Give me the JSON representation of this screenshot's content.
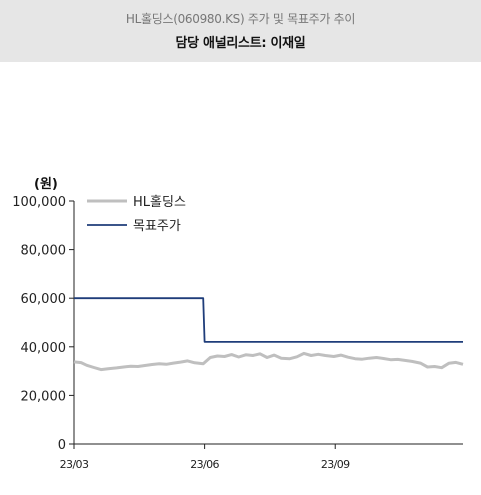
{
  "header": {
    "title": "HL홀딩스(060980.KS) 주가 및 목표주가 추이",
    "subtitle": "담당 애널리스트: 이재일"
  },
  "chart_data": {
    "type": "line",
    "unit_label": "(원)",
    "ylim": [
      0,
      100000
    ],
    "y_ticks": [
      "100,000",
      "80,000",
      "60,000",
      "40,000",
      "20,000",
      "0"
    ],
    "y_tick_values": [
      100000,
      80000,
      60000,
      40000,
      20000,
      0
    ],
    "x_ticks": [
      "23/03",
      "23/06",
      "23/09"
    ],
    "x_tick_values": [
      "2023-03-01",
      "2023-06-01",
      "2023-09-01"
    ],
    "xlim": [
      "2023-03-01",
      "2023-11-30"
    ],
    "grid": false,
    "legend_position": "top-left",
    "series": [
      {
        "name": "HL홀딩스",
        "color": "#bfbfbf",
        "x": [
          "2023-03-01",
          "2023-03-06",
          "2023-03-10",
          "2023-03-15",
          "2023-03-20",
          "2023-03-25",
          "2023-03-31",
          "2023-04-05",
          "2023-04-10",
          "2023-04-15",
          "2023-04-20",
          "2023-04-25",
          "2023-04-30",
          "2023-05-05",
          "2023-05-10",
          "2023-05-15",
          "2023-05-20",
          "2023-05-25",
          "2023-05-31",
          "2023-06-05",
          "2023-06-10",
          "2023-06-15",
          "2023-06-20",
          "2023-06-25",
          "2023-06-30",
          "2023-07-05",
          "2023-07-10",
          "2023-07-15",
          "2023-07-20",
          "2023-07-25",
          "2023-07-31",
          "2023-08-05",
          "2023-08-10",
          "2023-08-15",
          "2023-08-20",
          "2023-08-25",
          "2023-08-31",
          "2023-09-05",
          "2023-09-10",
          "2023-09-15",
          "2023-09-20",
          "2023-09-25",
          "2023-09-30",
          "2023-10-05",
          "2023-10-10",
          "2023-10-15",
          "2023-10-20",
          "2023-10-25",
          "2023-10-31",
          "2023-11-05",
          "2023-11-10",
          "2023-11-15",
          "2023-11-20",
          "2023-11-25",
          "2023-11-30"
        ],
        "y": [
          33800,
          33500,
          32400,
          31500,
          30600,
          31000,
          31300,
          31700,
          32000,
          31900,
          32300,
          32700,
          33000,
          32800,
          33300,
          33700,
          34200,
          33400,
          33000,
          35600,
          36200,
          36000,
          36800,
          35800,
          36700,
          36400,
          37100,
          35600,
          36600,
          35300,
          35100,
          35900,
          37300,
          36400,
          36900,
          36400,
          36000,
          36600,
          35700,
          35100,
          34900,
          35300,
          35600,
          35200,
          34700,
          34800,
          34400,
          34000,
          33300,
          31700,
          31900,
          31400,
          33200,
          33600,
          32800
        ]
      },
      {
        "name": "목표주가",
        "color": "#1f3d7a",
        "x": [
          "2023-03-01",
          "2023-05-31",
          "2023-06-01",
          "2023-11-30"
        ],
        "y": [
          60000,
          60000,
          42000,
          42000
        ]
      }
    ]
  }
}
